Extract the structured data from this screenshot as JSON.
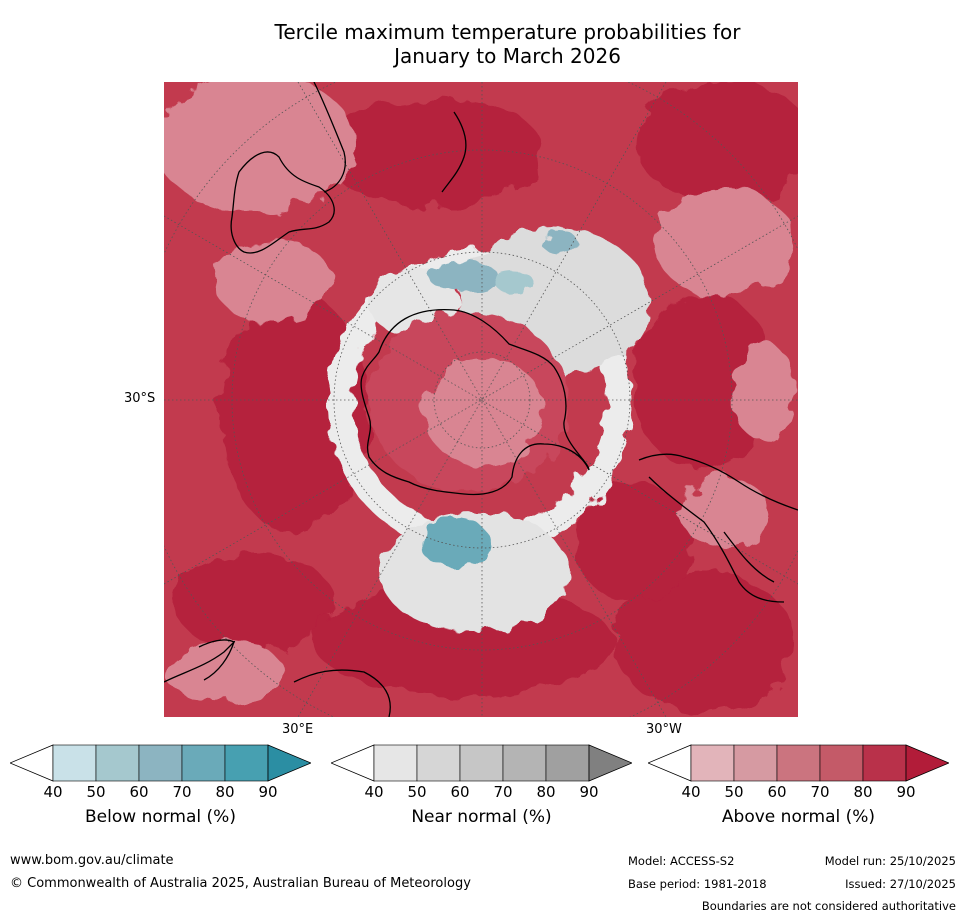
{
  "title_line1": "Tercile maximum temperature probabilities for",
  "title_line2": "January to March 2026",
  "map": {
    "latitude_label": "30°S",
    "longitude_labels": [
      "30°E",
      "30°W"
    ],
    "colors": {
      "above_deep": "#b5203d",
      "above_mid": "#c8475b",
      "above_light": "#d98592",
      "near": "#dcdcdc",
      "below": "#6aaab9",
      "land_outline": "#000000"
    }
  },
  "colorbars": [
    {
      "title": "Below normal (%)",
      "ticks": [
        "40",
        "50",
        "60",
        "70",
        "80",
        "90"
      ],
      "colors": [
        "#ffffff",
        "#c9e1e8",
        "#a5c8ce",
        "#8cb4c1",
        "#6aaab9",
        "#47a0b1",
        "#2b8ea3"
      ]
    },
    {
      "title": "Near normal (%)",
      "ticks": [
        "40",
        "50",
        "60",
        "70",
        "80",
        "90"
      ],
      "colors": [
        "#ffffff",
        "#e6e6e6",
        "#d6d6d6",
        "#c6c6c6",
        "#b4b4b4",
        "#a0a0a0",
        "#808080"
      ]
    },
    {
      "title": "Above normal (%)",
      "ticks": [
        "40",
        "50",
        "60",
        "70",
        "80",
        "90"
      ],
      "colors": [
        "#ffffff",
        "#e2b4ba",
        "#d69aa2",
        "#cb747f",
        "#c45a68",
        "#b9314a",
        "#b21c39"
      ]
    }
  ],
  "footer": {
    "website": "www.bom.gov.au/climate",
    "copyright": "© Commonwealth of Australia 2025, Australian Bureau of Meteorology",
    "model": "Model: ACCESS-S2",
    "model_run": "Model run: 25/10/2025",
    "base_period": "Base period: 1981-2018",
    "issued": "Issued: 27/10/2025",
    "disclaimer": "Boundaries are not considered authoritative"
  }
}
